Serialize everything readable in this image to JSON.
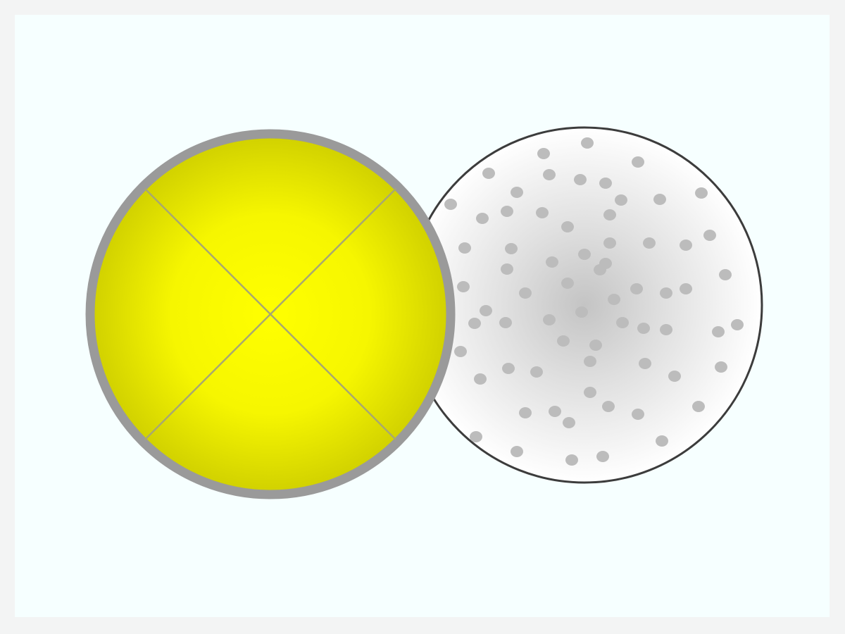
{
  "palette": {
    "page_background": "#f3f4f4",
    "canvas_background": "#f6ffff",
    "yellow_center": "#ffff00",
    "yellow_edge": "#d4d400",
    "yellow_outline": "#9a9a9a",
    "x_marks": "#a8a870",
    "white_center": "#c6c6c6",
    "white_edge": "#ffffff",
    "white_outline": "#3c3c3c",
    "dots": "#bdbdbd"
  },
  "icons": {
    "left_circle": "yellow-quartered-disc-icon",
    "right_circle": "white-speckled-disc-icon"
  }
}
